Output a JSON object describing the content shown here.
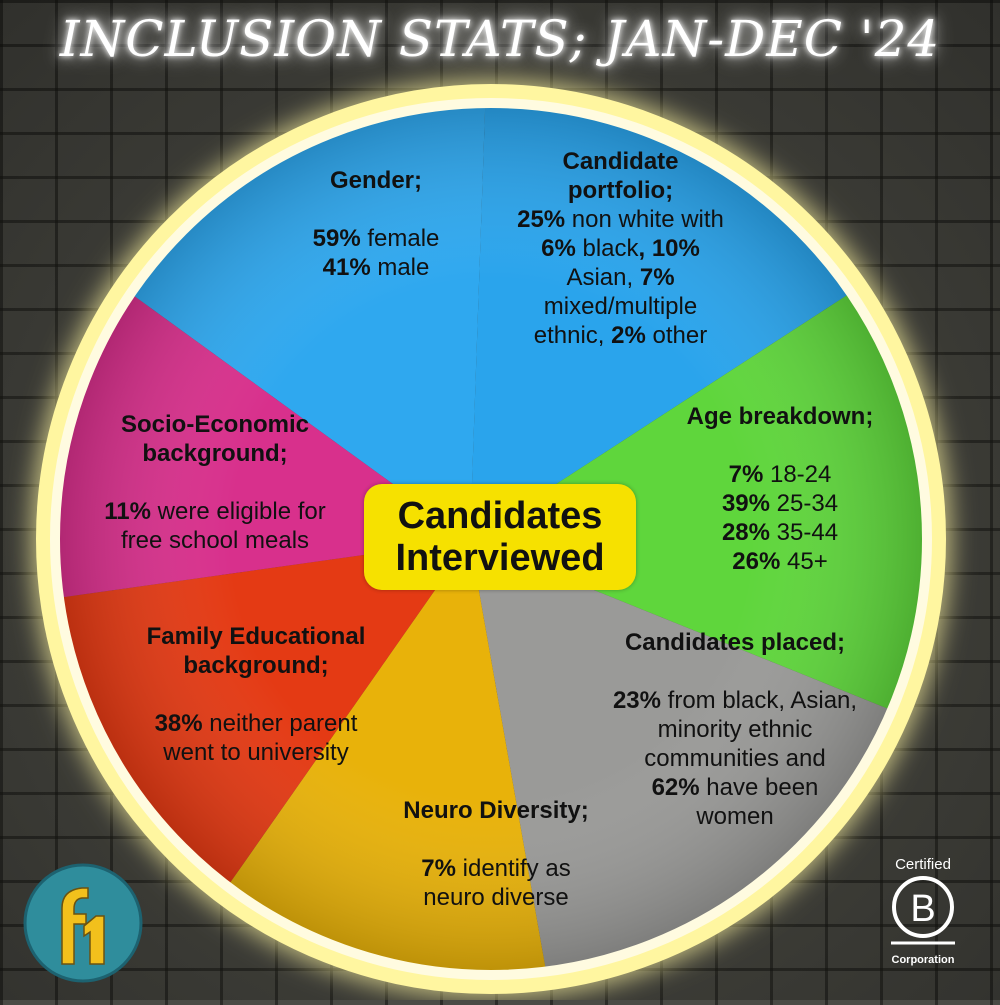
{
  "title": "INCLUSION STATS; JAN-DEC '24",
  "center": {
    "line1": "Candidates",
    "line2": "Interviewed"
  },
  "colors": {
    "gender": "#2fa8ef",
    "portfolio": "#2aa4ec",
    "age": "#5fd63c",
    "placed": "#9a9a98",
    "neuro": "#e8b20a",
    "family": "#e43a14",
    "socio": "#d8308c",
    "center_box": "#f6e100",
    "ring": "#fff7b0"
  },
  "segments": {
    "gender": {
      "heading": "Gender;",
      "lines": [
        {
          "bold": "59%",
          "text": " female"
        },
        {
          "bold": "41%",
          "text": " male"
        }
      ]
    },
    "portfolio": {
      "heading_lines": [
        "Candidate",
        "portfolio;"
      ],
      "lines": [
        {
          "bold": "25%",
          "text": " non white with"
        },
        {
          "bold": "6%",
          "text": " black",
          "bold2": ", 10%"
        },
        {
          "text": "Asian, ",
          "bold": "7%"
        },
        {
          "text": "mixed/multiple"
        },
        {
          "text": "ethnic, ",
          "bold": "2%",
          "text2": " other"
        }
      ]
    },
    "age": {
      "heading": "Age breakdown;",
      "lines": [
        {
          "bold": "7%",
          "text": " 18-24"
        },
        {
          "bold": "39%",
          "text": " 25-34"
        },
        {
          "bold": "28%",
          "text": " 35-44"
        },
        {
          "bold": "26%",
          "text": " 45+"
        }
      ]
    },
    "placed": {
      "heading": "Candidates placed;",
      "lines": [
        {
          "bold": "23%",
          "text": " from black, Asian,"
        },
        {
          "text": "minority ethnic"
        },
        {
          "text": "communities and"
        },
        {
          "bold": "62%",
          "text": " have been"
        },
        {
          "text": "women"
        }
      ]
    },
    "neuro": {
      "heading": "Neuro Diversity;",
      "lines": [
        {
          "bold": "7%",
          "text": " identify as"
        },
        {
          "text": "neuro diverse"
        }
      ]
    },
    "family": {
      "heading_lines": [
        "Family Educational",
        "background;"
      ],
      "lines": [
        {
          "bold": "38%",
          "text": " neither parent"
        },
        {
          "text": "went to university"
        }
      ]
    },
    "socio": {
      "heading_lines": [
        "Socio-Economic",
        "background;"
      ],
      "lines": [
        {
          "bold": "11%",
          "text": " were eligible for"
        },
        {
          "text": "free school meals"
        }
      ]
    }
  },
  "logo_f1": {
    "icon": "f1-logo",
    "text": "f1"
  },
  "bcorp": {
    "icon": "b-corp-logo",
    "top": "Certified",
    "letter": "B",
    "bottom": "Corporation"
  }
}
